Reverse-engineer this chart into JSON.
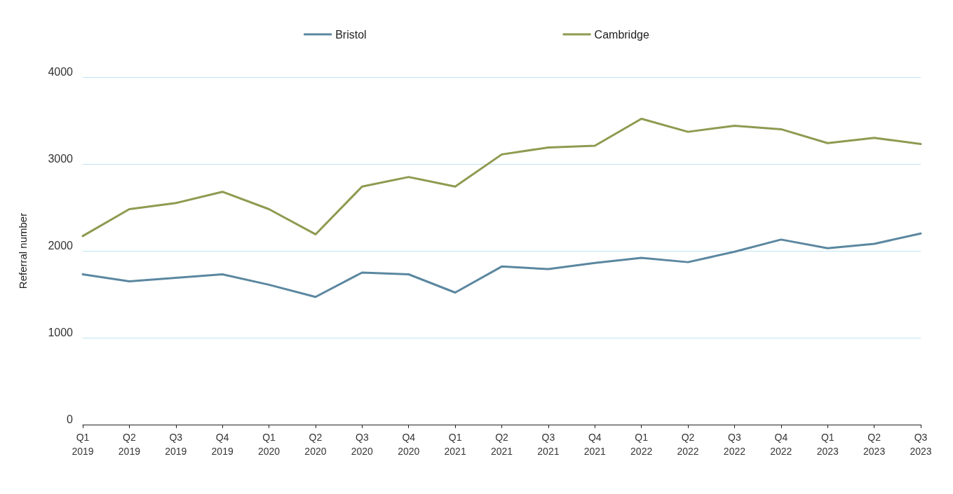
{
  "chart_data": {
    "type": "line",
    "ylabel": "Referral number",
    "categories": [
      "Q1\n2019",
      "Q2\n2019",
      "Q3\n2019",
      "Q4\n2019",
      "Q1\n2020",
      "Q2\n2020",
      "Q3\n2020",
      "Q4\n2020",
      "Q1\n2021",
      "Q2\n2021",
      "Q3\n2021",
      "Q4\n2021",
      "Q1\n2022",
      "Q2\n2022",
      "Q3\n2022",
      "Q4\n2022",
      "Q1\n2023",
      "Q2\n2023",
      "Q3\n2023"
    ],
    "series": [
      {
        "name": "Bristol",
        "color": "#5b87a0",
        "values": [
          1730,
          1650,
          1690,
          1730,
          1610,
          1470,
          1750,
          1730,
          1520,
          1820,
          1790,
          1860,
          1920,
          1870,
          1990,
          2130,
          2030,
          2080,
          2200
        ]
      },
      {
        "name": "Cambridge",
        "color": "#8f9a50",
        "values": [
          2170,
          2480,
          2550,
          2680,
          2480,
          2190,
          2740,
          2850,
          2740,
          3110,
          3190,
          3210,
          3520,
          3370,
          3440,
          3400,
          3240,
          3300,
          3230
        ]
      }
    ],
    "ylim": [
      0,
      4000
    ],
    "yticks": [
      0,
      1000,
      2000,
      3000,
      4000
    ],
    "grid": "y",
    "legend": "top",
    "marker": "none",
    "line_style": "solid"
  }
}
